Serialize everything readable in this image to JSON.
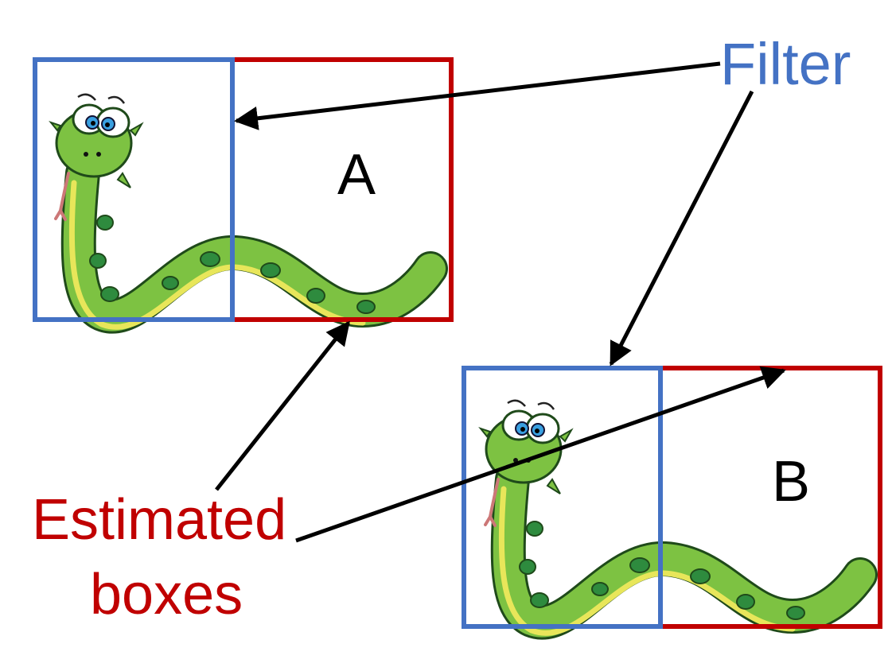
{
  "labels": {
    "filter": "Filter",
    "estimated_line1": "Estimated",
    "estimated_line2": "boxes",
    "box_a": "A",
    "box_b": "B"
  },
  "colors": {
    "filter": "#4472C4",
    "estimated": "#C00000",
    "arrow": "#000000",
    "snake_body": "#7DC242",
    "snake_belly": "#E8E65A",
    "snake_spot": "#2E8B3E",
    "snake_outline": "#1F4A1A"
  }
}
